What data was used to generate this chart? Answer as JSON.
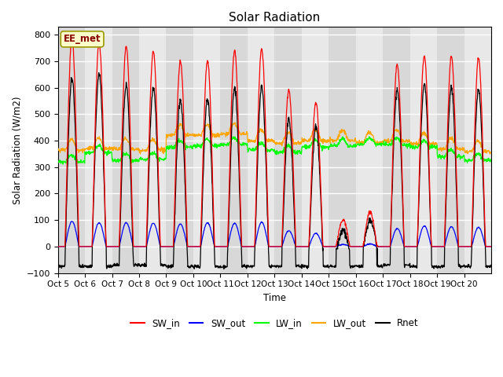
{
  "title": "Solar Radiation",
  "ylabel": "Solar Radiation (W/m2)",
  "xlabel": "Time",
  "ylim": [
    -100,
    830
  ],
  "xtick_labels": [
    "Oct 5",
    "Oct 6",
    "Oct 7",
    "Oct 8",
    "Oct 9",
    "Oct 10",
    "Oct 11",
    "Oct 12",
    "Oct 13",
    "Oct 14",
    "Oct 15",
    "Oct 16",
    "Oct 17",
    "Oct 18",
    "Oct 19",
    "Oct 20"
  ],
  "legend_labels": [
    "SW_in",
    "SW_out",
    "LW_in",
    "LW_out",
    "Rnet"
  ],
  "legend_colors": [
    "red",
    "blue",
    "green",
    "orange",
    "black"
  ],
  "station_label": "EE_met",
  "n_days": 16,
  "SW_in_peaks": [
    790,
    770,
    755,
    740,
    700,
    700,
    740,
    745,
    590,
    545,
    100,
    130,
    690,
    720,
    720,
    710
  ],
  "SW_out_peaks": [
    95,
    90,
    90,
    88,
    85,
    90,
    88,
    92,
    60,
    50,
    8,
    10,
    68,
    78,
    75,
    72
  ],
  "LW_in_base": [
    320,
    355,
    325,
    330,
    375,
    380,
    385,
    365,
    355,
    375,
    380,
    385,
    385,
    375,
    340,
    325
  ],
  "LW_out_base": [
    365,
    370,
    368,
    363,
    420,
    420,
    425,
    400,
    390,
    400,
    400,
    392,
    398,
    388,
    368,
    358
  ],
  "Rnet_night": [
    -75,
    -75,
    -70,
    -70,
    -75,
    -75,
    -75,
    -75,
    -75,
    -75,
    -75,
    -75,
    -70,
    -75,
    -75,
    -75
  ],
  "plot_bg_color": "#e8e8e8",
  "grid_color": "white"
}
